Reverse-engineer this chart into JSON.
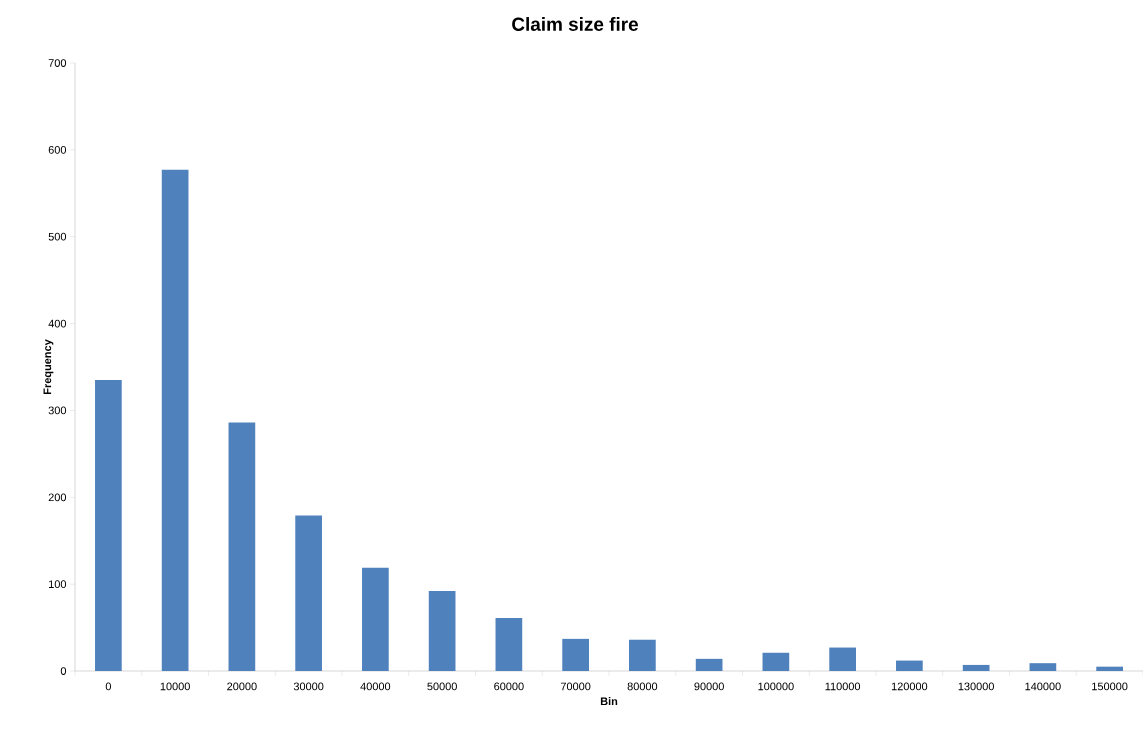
{
  "chart_data": {
    "type": "bar",
    "title": "Claim size fire",
    "xlabel": "Bin",
    "ylabel": "Frequency",
    "categories": [
      "0",
      "10000",
      "20000",
      "30000",
      "40000",
      "50000",
      "60000",
      "70000",
      "80000",
      "90000",
      "100000",
      "110000",
      "120000",
      "130000",
      "140000",
      "150000"
    ],
    "values": [
      335,
      577,
      286,
      179,
      119,
      92,
      61,
      37,
      36,
      14,
      21,
      27,
      12,
      7,
      9,
      5
    ],
    "color": "#4f81bd",
    "ylim": [
      0,
      700
    ],
    "yticks": [
      0,
      100,
      200,
      300,
      400,
      500,
      600,
      700
    ]
  }
}
